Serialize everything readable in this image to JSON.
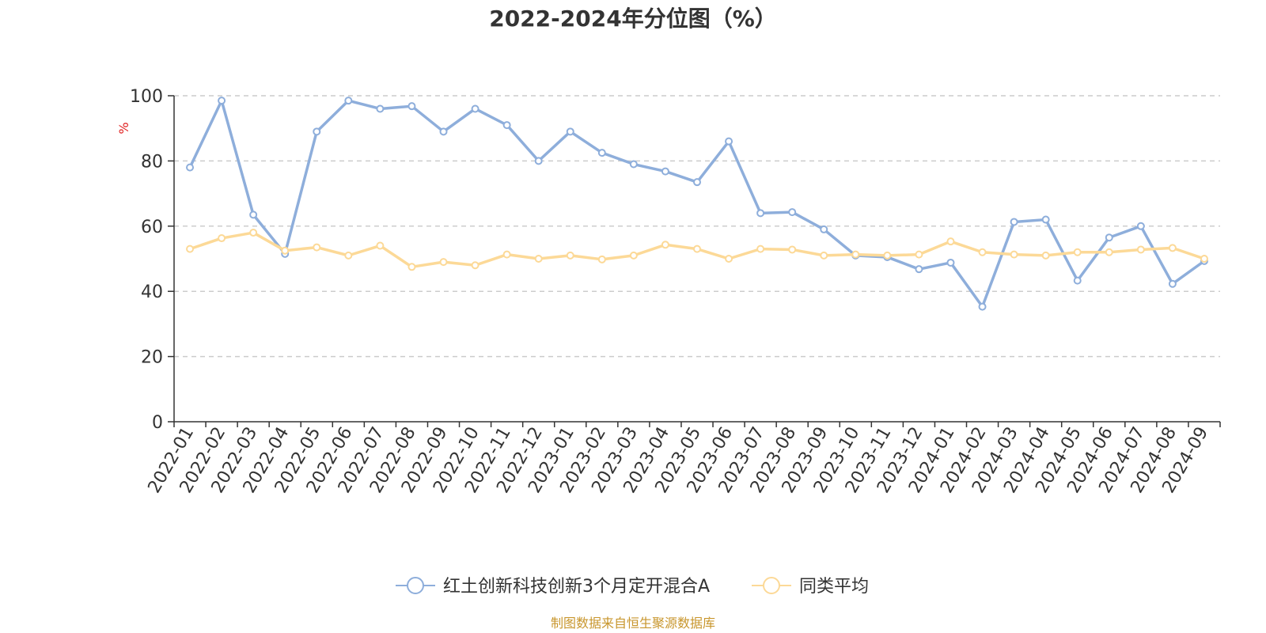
{
  "chart_data": {
    "type": "line",
    "title": "2022-2024年分位图（%）",
    "ylabel": "%",
    "ylim": [
      0,
      100
    ],
    "yticks": [
      0,
      20,
      40,
      60,
      80,
      100
    ],
    "grid": "horizontal-dashed",
    "legend_position": "bottom-center",
    "categories": [
      "2022-01",
      "2022-02",
      "2022-03",
      "2022-04",
      "2022-05",
      "2022-06",
      "2022-07",
      "2022-08",
      "2022-09",
      "2022-10",
      "2022-11",
      "2022-12",
      "2023-01",
      "2023-02",
      "2023-03",
      "2023-04",
      "2023-05",
      "2023-06",
      "2023-07",
      "2023-08",
      "2023-09",
      "2023-10",
      "2023-11",
      "2023-12",
      "2024-01",
      "2024-02",
      "2024-03",
      "2024-04",
      "2024-05",
      "2024-06",
      "2024-07",
      "2024-08",
      "2024-09"
    ],
    "series": [
      {
        "name": "红土创新科技创新3个月定开混合A",
        "color": "#8eaedb",
        "values": [
          78,
          98.5,
          63.5,
          51.5,
          89,
          98.5,
          96,
          96.8,
          89,
          96,
          91,
          80,
          89,
          82.5,
          79,
          76.8,
          73.5,
          86,
          64,
          64.3,
          59,
          51,
          50.5,
          46.8,
          48.8,
          35.3,
          61.3,
          62,
          43.3,
          56.5,
          60,
          42.3,
          49.3
        ]
      },
      {
        "name": "同类平均",
        "color": "#fcd997",
        "values": [
          53,
          56.3,
          58,
          52.5,
          53.5,
          51,
          54,
          47.5,
          49,
          48,
          51.3,
          50,
          51,
          49.8,
          51,
          54.3,
          53,
          50,
          53,
          52.8,
          51,
          51.3,
          51,
          51.3,
          55.3,
          52,
          51.3,
          51,
          52,
          52,
          52.8,
          53.3,
          50
        ]
      }
    ],
    "source": "制图数据来自恒生聚源数据库"
  }
}
